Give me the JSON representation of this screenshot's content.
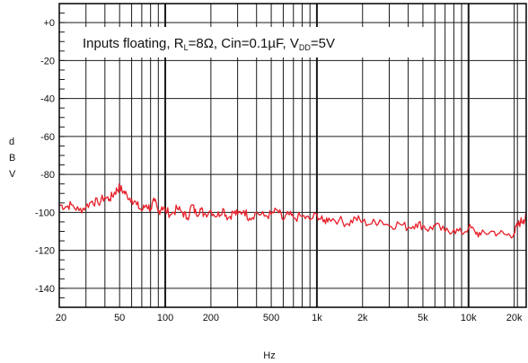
{
  "chart_data": {
    "type": "line",
    "title": "",
    "annotation": {
      "parts": [
        "Inputs floating, R",
        "L",
        "=8Ω, Cin=0.1µF, V",
        "DD",
        "=5V"
      ]
    },
    "xlabel": "Hz",
    "ylabel": "dBV",
    "ylabel_letters": [
      "d",
      "B",
      "V"
    ],
    "xscale": "log",
    "xlim": [
      20,
      24000
    ],
    "ylim": [
      -150,
      10
    ],
    "grid": true,
    "x_ticks": [
      20,
      50,
      100,
      200,
      500,
      1000,
      2000,
      5000,
      10000,
      20000
    ],
    "x_tick_labels": [
      "20",
      "50",
      "100",
      "200",
      "500",
      "1k",
      "2k",
      "5k",
      "10k",
      "20k"
    ],
    "y_ticks": [
      0,
      -20,
      -40,
      -60,
      -80,
      -100,
      -120,
      -140
    ],
    "y_tick_labels": [
      "+0",
      "-20",
      "-40",
      "-60",
      "-80",
      "-100",
      "-120",
      "-140"
    ],
    "series": [
      {
        "color": "#e8202a",
        "x": [
          20,
          22,
          24,
          27,
          30,
          33,
          36,
          40,
          43,
          46,
          48,
          50,
          53,
          56,
          60,
          65,
          70,
          75,
          80,
          85,
          90,
          95,
          100,
          110,
          120,
          130,
          140,
          150,
          160,
          170,
          180,
          200,
          220,
          240,
          260,
          280,
          300,
          330,
          360,
          400,
          450,
          500,
          550,
          600,
          650,
          700,
          800,
          900,
          1000,
          1100,
          1200,
          1400,
          1600,
          1800,
          2000,
          2300,
          2600,
          3000,
          3500,
          4000,
          4500,
          5000,
          5500,
          6000,
          7000,
          8000,
          9000,
          10000,
          11000,
          12000,
          14000,
          16000,
          18000,
          20000,
          21000,
          22000,
          23000,
          24000
        ],
        "y": [
          -96,
          -97,
          -96,
          -99,
          -97,
          -94,
          -95,
          -92,
          -93,
          -90,
          -88,
          -87,
          -89,
          -91,
          -93,
          -96,
          -99,
          -96,
          -98,
          -94,
          -100,
          -97,
          -99,
          -101,
          -98,
          -100,
          -103,
          -96,
          -101,
          -98,
          -101,
          -99,
          -102,
          -98,
          -103,
          -100,
          -101,
          -99,
          -103,
          -100,
          -102,
          -101,
          -99,
          -104,
          -101,
          -103,
          -102,
          -104,
          -101,
          -105,
          -103,
          -104,
          -106,
          -103,
          -105,
          -106,
          -104,
          -107,
          -106,
          -108,
          -106,
          -107,
          -109,
          -107,
          -110,
          -109,
          -111,
          -108,
          -110,
          -112,
          -110,
          -111,
          -112,
          -111,
          -107,
          -105,
          -104,
          -103
        ]
      }
    ]
  }
}
